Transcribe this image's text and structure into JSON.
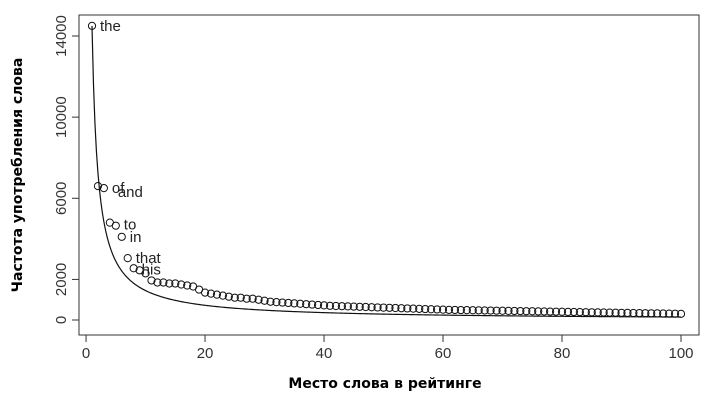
{
  "chart_data": {
    "type": "scatter",
    "title": "",
    "xlabel": "Место слова в рейтинге",
    "ylabel": "Частота употребления слова",
    "xlim": [
      0,
      100
    ],
    "ylim": [
      0,
      14000
    ],
    "x_ticks": [
      0,
      20,
      40,
      60,
      80,
      100
    ],
    "y_ticks": [
      0,
      2000,
      6000,
      10000,
      14000
    ],
    "grid": false,
    "legend": "none",
    "series": [
      {
        "kind": "points",
        "x": [
          1,
          2,
          3,
          4,
          5,
          6,
          7,
          8,
          9,
          10,
          11,
          12,
          13,
          14,
          15,
          16,
          17,
          18,
          19,
          20,
          21,
          22,
          23,
          24,
          25,
          26,
          27,
          28,
          29,
          30,
          31,
          32,
          33,
          34,
          35,
          36,
          37,
          38,
          39,
          40,
          41,
          42,
          43,
          44,
          45,
          46,
          47,
          48,
          49,
          50,
          51,
          52,
          53,
          54,
          55,
          56,
          57,
          58,
          59,
          60,
          61,
          62,
          63,
          64,
          65,
          66,
          67,
          68,
          69,
          70,
          71,
          72,
          73,
          74,
          75,
          76,
          77,
          78,
          79,
          80,
          81,
          82,
          83,
          84,
          85,
          86,
          87,
          88,
          89,
          90,
          91,
          92,
          93,
          94,
          95,
          96,
          97,
          98,
          99,
          100
        ],
        "y": [
          14500,
          6600,
          6500,
          4800,
          4650,
          4100,
          3050,
          2550,
          2450,
          2300,
          1950,
          1850,
          1850,
          1800,
          1800,
          1750,
          1700,
          1650,
          1500,
          1350,
          1300,
          1250,
          1200,
          1150,
          1100,
          1100,
          1050,
          1050,
          1000,
          950,
          900,
          880,
          860,
          840,
          820,
          800,
          780,
          760,
          740,
          720,
          700,
          690,
          680,
          670,
          660,
          650,
          640,
          630,
          620,
          610,
          600,
          590,
          580,
          570,
          560,
          550,
          540,
          530,
          520,
          510,
          500,
          495,
          490,
          485,
          480,
          475,
          470,
          465,
          460,
          455,
          450,
          445,
          440,
          435,
          430,
          425,
          420,
          415,
          410,
          405,
          400,
          395,
          390,
          385,
          380,
          375,
          370,
          365,
          360,
          355,
          350,
          345,
          340,
          335,
          330,
          325,
          320,
          315,
          310,
          305
        ]
      },
      {
        "kind": "curve",
        "formula": "14500 / x",
        "x_range": [
          1,
          100
        ]
      }
    ],
    "annotations": [
      {
        "text": "the",
        "x": 1,
        "y": 14500
      },
      {
        "text": "of",
        "x": 3,
        "y": 6500
      },
      {
        "text": "and",
        "x": 4,
        "y": 6300
      },
      {
        "text": "to",
        "x": 5,
        "y": 4700
      },
      {
        "text": "in",
        "x": 6,
        "y": 4100
      },
      {
        "text": "that",
        "x": 7,
        "y": 3050
      },
      {
        "text": "his",
        "x": 8,
        "y": 2500
      }
    ]
  }
}
